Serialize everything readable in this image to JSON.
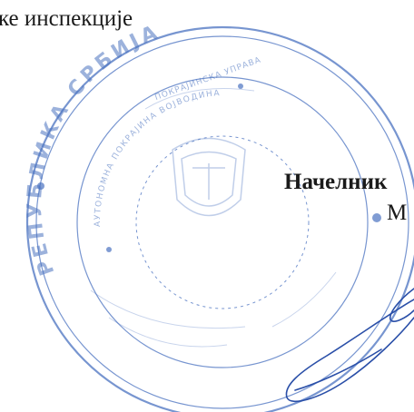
{
  "document": {
    "top_line_fragment": "ке инспекције",
    "signature_block": {
      "title_fragment": "Начелник",
      "name_fragment": "М"
    }
  },
  "stamp": {
    "outer_ring_text": "РЕПУБЛИКА СРБИЈА",
    "inner_text_lines": [
      "АУТОНОМНА ПОКРАЈИНА ВОЈВОДИНА",
      "ПОКРАЈИНСКА УПРАВА"
    ],
    "color": "#4a72c0"
  },
  "signature_color": "#2a4fa8"
}
